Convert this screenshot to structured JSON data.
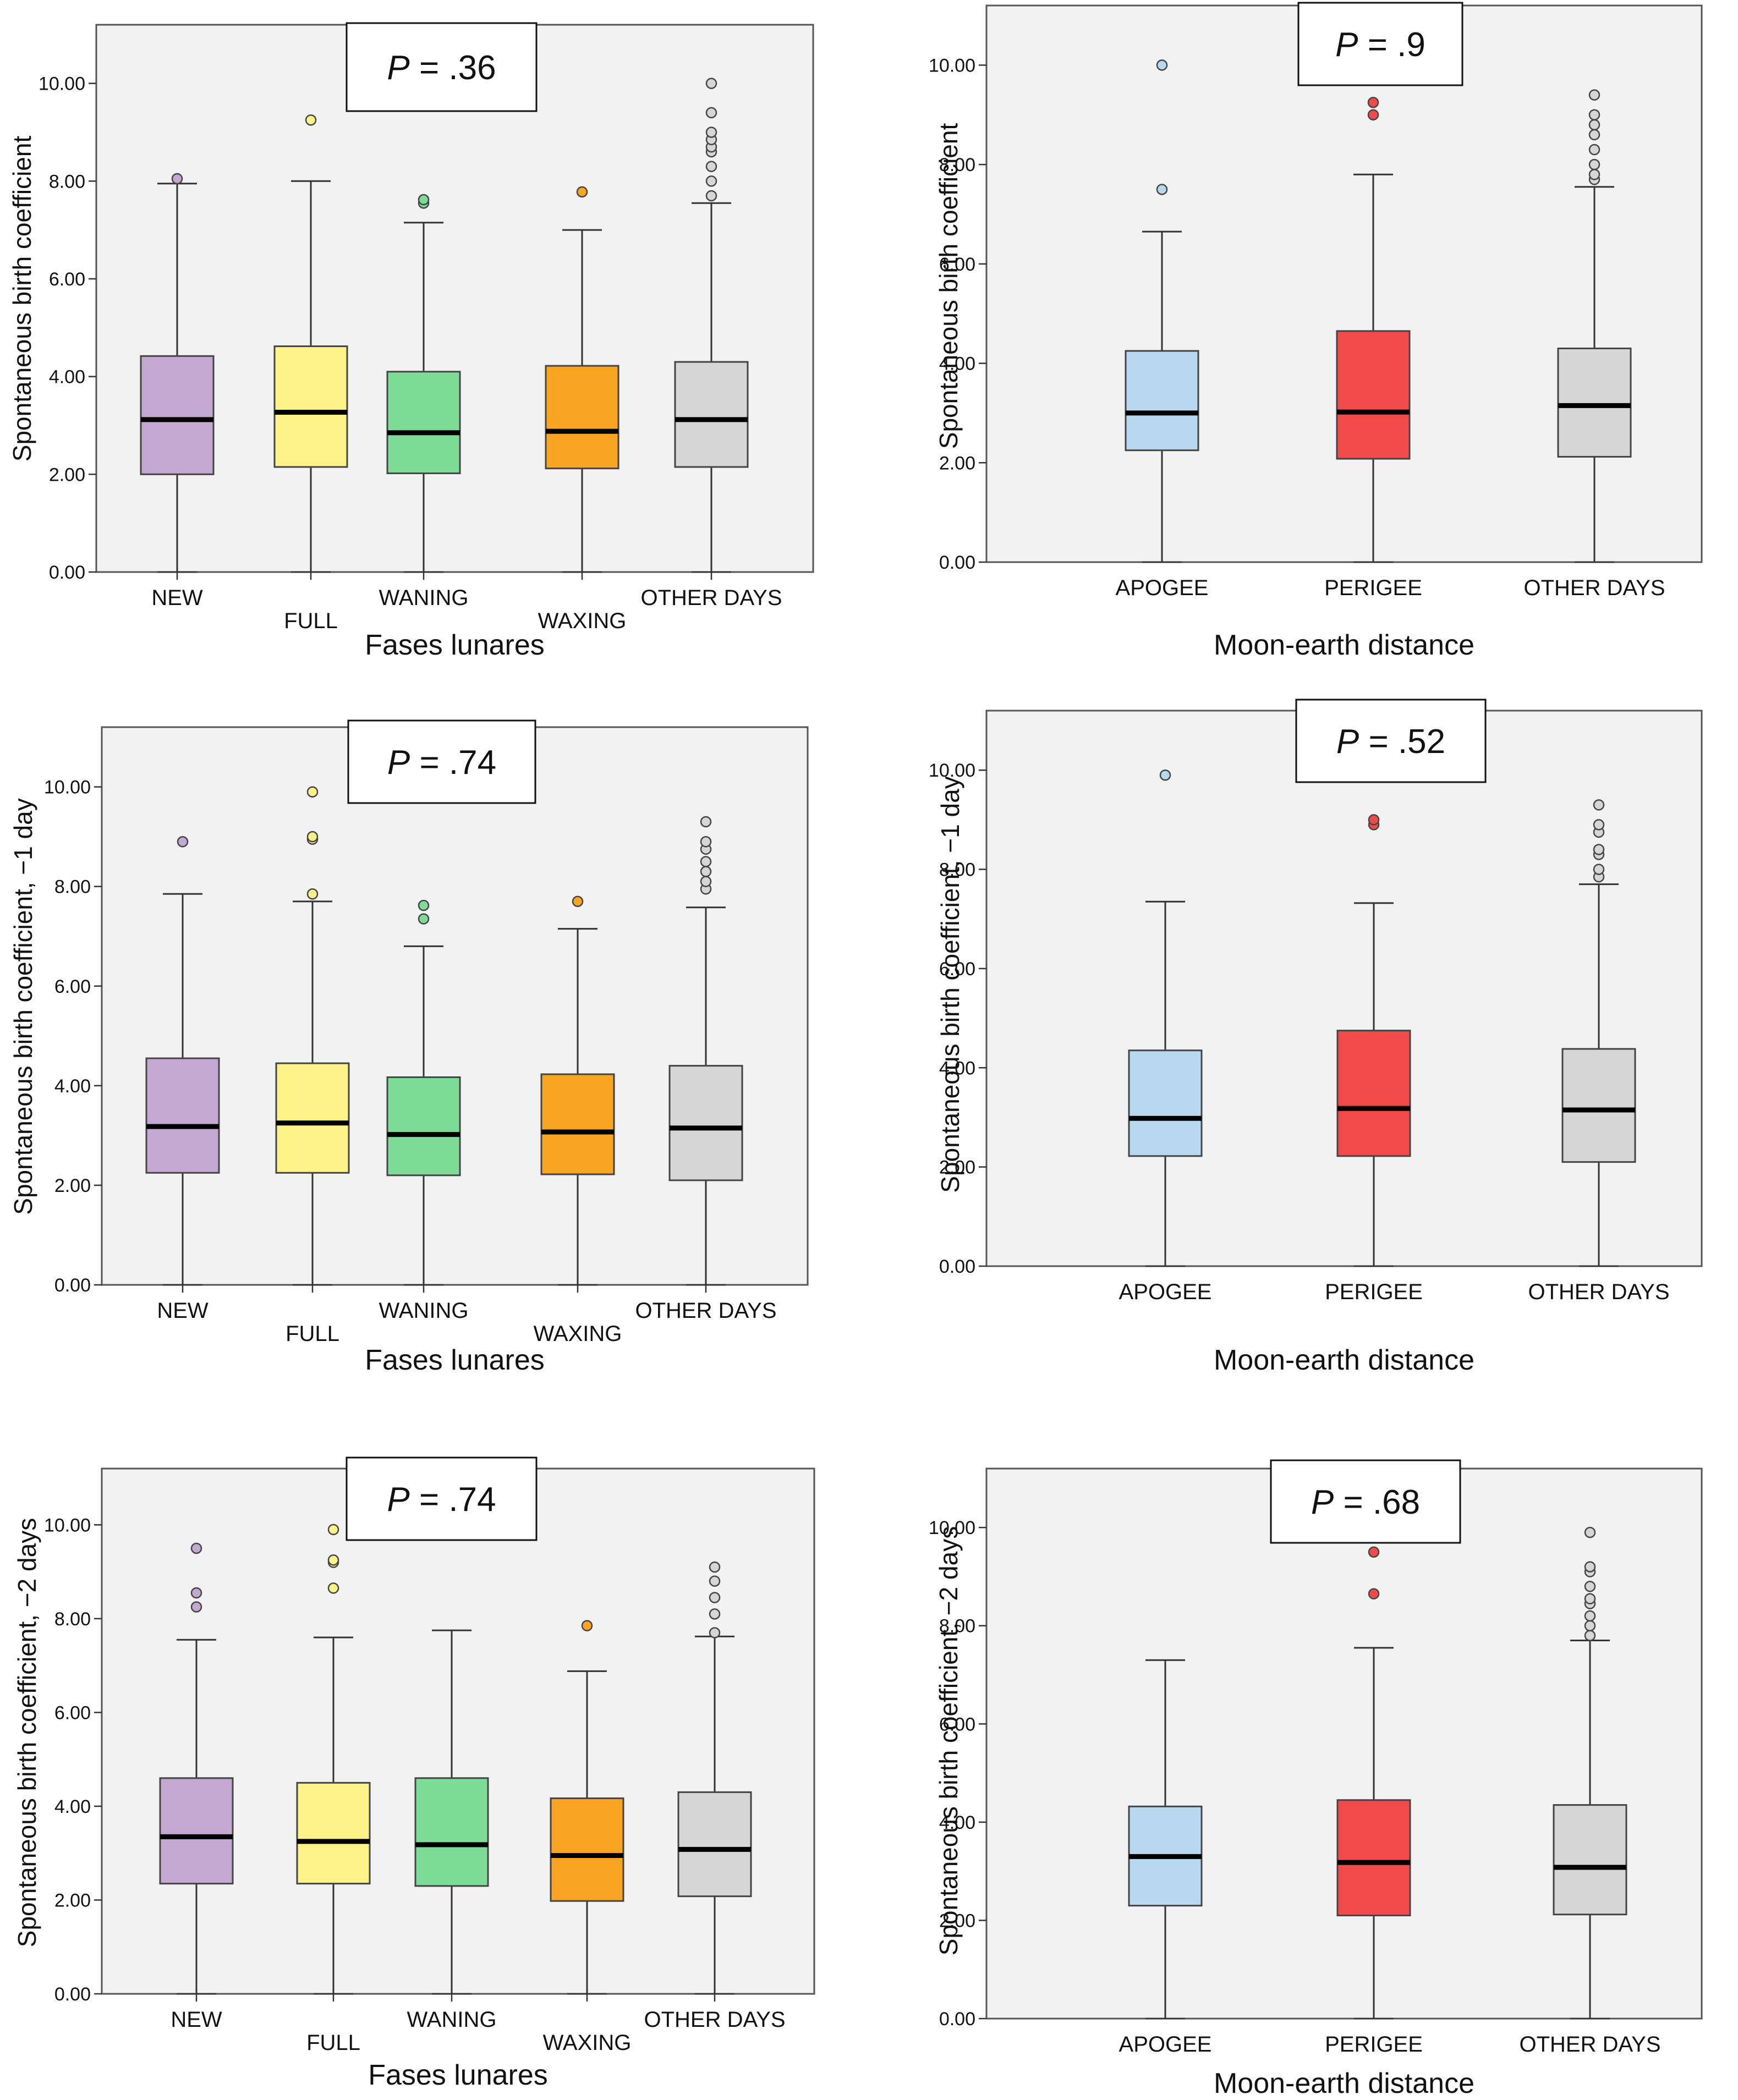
{
  "colors": {
    "panel_bg": "#f2f2f2",
    "new": "#c3a8d1",
    "full": "#fdf288",
    "waning": "#7ddd97",
    "waxing": "#f9a423",
    "other_days": "#d6d6d6",
    "apogee": "#b8d8f0",
    "perigee": "#f24a4a",
    "median": "#000000"
  },
  "chart_data": [
    {
      "type": "boxplot",
      "p_value": ".36",
      "xlabel": "Fases lunares",
      "ylabel": "Spontaneous birth coefficient",
      "ylim": [
        0,
        11.2
      ],
      "yticks": [
        "0.00",
        "2.00",
        "4.00",
        "6.00",
        "8.00",
        "10.00"
      ],
      "categories": [
        "NEW",
        "FULL",
        "WANING",
        "WAXING",
        "OTHER DAYS"
      ],
      "boxes": [
        {
          "min": 0,
          "q1": 2.0,
          "median": 3.12,
          "q3": 4.42,
          "max": 7.95,
          "outliers": [
            8.05
          ],
          "color": "new"
        },
        {
          "min": 0,
          "q1": 2.15,
          "median": 3.27,
          "q3": 4.62,
          "max": 8.0,
          "outliers": [
            9.25
          ],
          "color": "full"
        },
        {
          "min": 0,
          "q1": 2.02,
          "median": 2.85,
          "q3": 4.1,
          "max": 7.15,
          "outliers": [
            7.55,
            7.62
          ],
          "color": "waning"
        },
        {
          "min": 0,
          "q1": 2.12,
          "median": 2.88,
          "q3": 4.22,
          "max": 7.0,
          "outliers": [
            7.78
          ],
          "color": "waxing"
        },
        {
          "min": 0,
          "q1": 2.15,
          "median": 3.12,
          "q3": 4.3,
          "max": 7.55,
          "outliers": [
            7.7,
            8.0,
            8.3,
            8.6,
            8.7,
            8.85,
            9.0,
            9.4,
            10.0
          ],
          "color": "other_days"
        }
      ]
    },
    {
      "type": "boxplot",
      "p_value": ".9",
      "xlabel": "Moon-earth distance",
      "ylabel": "Spontaneous birth coefficient",
      "ylim": [
        0,
        11.2
      ],
      "yticks": [
        "0.00",
        "2.00",
        "4.00",
        "6.00",
        "8.00",
        "10.00"
      ],
      "categories": [
        "APOGEE",
        "PERIGEE",
        "OTHER DAYS"
      ],
      "boxes": [
        {
          "min": 0,
          "q1": 2.25,
          "median": 3.0,
          "q3": 4.25,
          "max": 6.65,
          "outliers": [
            7.5,
            10.0
          ],
          "color": "apogee"
        },
        {
          "min": 0,
          "q1": 2.08,
          "median": 3.02,
          "q3": 4.65,
          "max": 7.8,
          "outliers": [
            9.0,
            9.25
          ],
          "color": "perigee"
        },
        {
          "min": 0,
          "q1": 2.12,
          "median": 3.15,
          "q3": 4.3,
          "max": 7.55,
          "outliers": [
            7.7,
            7.8,
            8.0,
            8.3,
            8.6,
            8.8,
            9.0,
            9.4
          ],
          "color": "other_days"
        }
      ]
    },
    {
      "type": "boxplot",
      "p_value": ".74",
      "xlabel": "Fases lunares",
      "ylabel": "Spontaneous birth coefficient, −1 day",
      "ylim": [
        0,
        11.2
      ],
      "yticks": [
        "0.00",
        "2.00",
        "4.00",
        "6.00",
        "8.00",
        "10.00"
      ],
      "categories": [
        "NEW",
        "FULL",
        "WANING",
        "WAXING",
        "OTHER DAYS"
      ],
      "boxes": [
        {
          "min": 0,
          "q1": 2.25,
          "median": 3.18,
          "q3": 4.55,
          "max": 7.85,
          "outliers": [
            8.9
          ],
          "color": "new"
        },
        {
          "min": 0,
          "q1": 2.25,
          "median": 3.25,
          "q3": 4.45,
          "max": 7.7,
          "outliers": [
            7.85,
            8.95,
            9.0,
            9.9
          ],
          "color": "full"
        },
        {
          "min": 0,
          "q1": 2.2,
          "median": 3.02,
          "q3": 4.17,
          "max": 6.8,
          "outliers": [
            7.35,
            7.62
          ],
          "color": "waning"
        },
        {
          "min": 0,
          "q1": 2.22,
          "median": 3.07,
          "q3": 4.23,
          "max": 7.15,
          "outliers": [
            7.7
          ],
          "color": "waxing"
        },
        {
          "min": 0,
          "q1": 2.1,
          "median": 3.15,
          "q3": 4.4,
          "max": 7.58,
          "outliers": [
            7.95,
            8.1,
            8.3,
            8.5,
            8.75,
            8.9,
            9.3
          ],
          "color": "other_days"
        }
      ]
    },
    {
      "type": "boxplot",
      "p_value": ".52",
      "xlabel": "Moon-earth distance",
      "ylabel": "Spontaneous birth coefficient, −1 day",
      "ylim": [
        0,
        11.2
      ],
      "yticks": [
        "0.00",
        "2.00",
        "4.00",
        "6.00",
        "8.00",
        "10.00"
      ],
      "categories": [
        "APOGEE",
        "PERIGEE",
        "OTHER DAYS"
      ],
      "boxes": [
        {
          "min": 0,
          "q1": 2.22,
          "median": 2.98,
          "q3": 4.35,
          "max": 7.35,
          "outliers": [
            9.9
          ],
          "color": "apogee"
        },
        {
          "min": 0,
          "q1": 2.22,
          "median": 3.18,
          "q3": 4.75,
          "max": 7.32,
          "outliers": [
            8.9,
            9.0
          ],
          "color": "perigee"
        },
        {
          "min": 0,
          "q1": 2.1,
          "median": 3.15,
          "q3": 4.38,
          "max": 7.7,
          "outliers": [
            7.85,
            8.0,
            8.3,
            8.4,
            8.75,
            8.9,
            9.3
          ],
          "color": "other_days"
        }
      ]
    },
    {
      "type": "boxplot",
      "p_value": ".74",
      "xlabel": "Fases lunares",
      "ylabel": "Spontaneous birth coefficient, −2 days",
      "ylim": [
        0,
        11.2
      ],
      "yticks": [
        "0.00",
        "2.00",
        "4.00",
        "6.00",
        "8.00",
        "10.00"
      ],
      "categories": [
        "NEW",
        "FULL",
        "WANING",
        "WAXING",
        "OTHER DAYS"
      ],
      "boxes": [
        {
          "min": 0,
          "q1": 2.35,
          "median": 3.35,
          "q3": 4.6,
          "max": 7.55,
          "outliers": [
            8.25,
            8.55,
            9.5
          ],
          "color": "new"
        },
        {
          "min": 0,
          "q1": 2.35,
          "median": 3.25,
          "q3": 4.5,
          "max": 7.6,
          "outliers": [
            8.65,
            9.2,
            9.25,
            9.9
          ],
          "color": "full"
        },
        {
          "min": 0,
          "q1": 2.3,
          "median": 3.18,
          "q3": 4.6,
          "max": 7.75,
          "outliers": [],
          "color": "waning"
        },
        {
          "min": 0,
          "q1": 1.98,
          "median": 2.95,
          "q3": 4.17,
          "max": 6.88,
          "outliers": [
            7.85
          ],
          "color": "waxing"
        },
        {
          "min": 0,
          "q1": 2.08,
          "median": 3.08,
          "q3": 4.3,
          "max": 7.62,
          "outliers": [
            7.7,
            8.1,
            8.45,
            8.8,
            9.1
          ],
          "color": "other_days"
        }
      ]
    },
    {
      "type": "boxplot",
      "p_value": ".68",
      "xlabel": "Moon-earth distance",
      "ylabel": "Spontaneous birth coefficient, −2 days",
      "ylim": [
        0,
        11.2
      ],
      "yticks": [
        "0.00",
        "2.00",
        "4.00",
        "6.00",
        "8.00",
        "10.00"
      ],
      "categories": [
        "APOGEE",
        "PERIGEE",
        "OTHER DAYS"
      ],
      "boxes": [
        {
          "min": 0,
          "q1": 2.3,
          "median": 3.3,
          "q3": 4.32,
          "max": 7.3,
          "outliers": [],
          "color": "apogee"
        },
        {
          "min": 0,
          "q1": 2.1,
          "median": 3.18,
          "q3": 4.45,
          "max": 7.55,
          "outliers": [
            8.65,
            9.5
          ],
          "color": "perigee"
        },
        {
          "min": 0,
          "q1": 2.12,
          "median": 3.08,
          "q3": 4.35,
          "max": 7.7,
          "outliers": [
            7.8,
            8.0,
            8.2,
            8.45,
            8.55,
            8.8,
            9.1,
            9.2,
            9.9
          ],
          "color": "other_days"
        }
      ]
    }
  ]
}
